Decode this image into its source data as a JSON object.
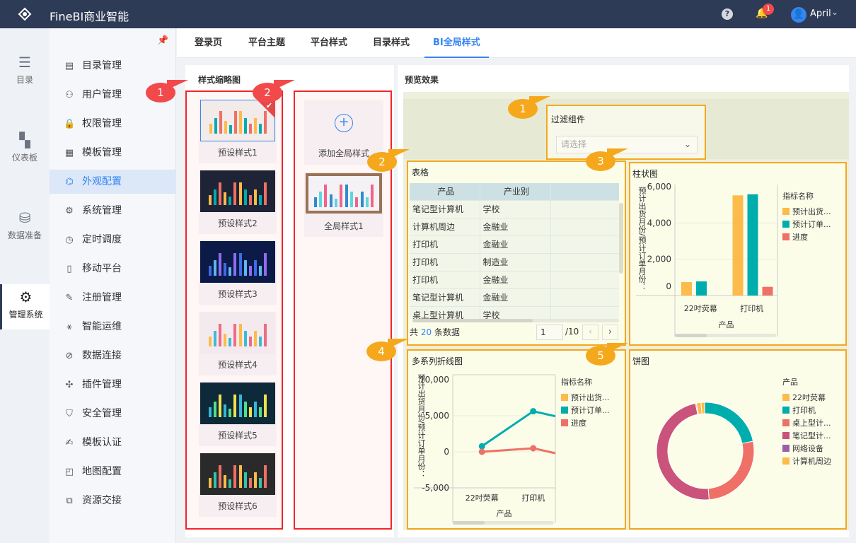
{
  "header": {
    "app_title": "FineBI商业智能",
    "help_icon": "question-icon",
    "notification_count": "1",
    "user_name": "April"
  },
  "rail": [
    {
      "label": "目录",
      "icon": "list-icon"
    },
    {
      "label": "仪表板",
      "icon": "dashboard-icon"
    },
    {
      "label": "数据准备",
      "icon": "database-icon"
    },
    {
      "label": "管理系统",
      "icon": "gear-icon",
      "active": true
    }
  ],
  "sidebar": {
    "items": [
      {
        "label": "目录管理",
        "icon": "▤"
      },
      {
        "label": "用户管理",
        "icon": "⚇"
      },
      {
        "label": "权限管理",
        "icon": "🔒"
      },
      {
        "label": "模板管理",
        "icon": "▦"
      },
      {
        "label": "外观配置",
        "icon": "⌬",
        "active": true
      },
      {
        "label": "系统管理",
        "icon": "⚙"
      },
      {
        "label": "定时调度",
        "icon": "◷"
      },
      {
        "label": "移动平台",
        "icon": "▯"
      },
      {
        "label": "注册管理",
        "icon": "✎"
      },
      {
        "label": "智能运维",
        "icon": "⚹"
      },
      {
        "label": "数据连接",
        "icon": "⊘"
      },
      {
        "label": "插件管理",
        "icon": "✣"
      },
      {
        "label": "安全管理",
        "icon": "⛉"
      },
      {
        "label": "模板认证",
        "icon": "✍"
      },
      {
        "label": "地图配置",
        "icon": "◰"
      },
      {
        "label": "资源交接",
        "icon": "⧉"
      }
    ]
  },
  "tabs": [
    {
      "label": "登录页"
    },
    {
      "label": "平台主题"
    },
    {
      "label": "平台样式"
    },
    {
      "label": "目录样式"
    },
    {
      "label": "BI全局样式",
      "active": true
    }
  ],
  "thumbnails": {
    "title": "样式缩略图",
    "presets": [
      {
        "label": "预设样式1",
        "bg": "#f3eaea",
        "selected": true
      },
      {
        "label": "预设样式2",
        "bg": "#1f2336"
      },
      {
        "label": "预设样式3",
        "bg": "#0c1a48"
      },
      {
        "label": "预设样式4",
        "bg": "#f4eaee"
      },
      {
        "label": "预设样式5",
        "bg": "#0e2a3a"
      },
      {
        "label": "预设样式6",
        "bg": "#2a2a2a"
      }
    ],
    "add_label": "添加全局样式",
    "custom": [
      {
        "label": "全局样式1"
      }
    ]
  },
  "preview": {
    "title": "预览效果",
    "filter": {
      "title": "过滤组件",
      "placeholder": "请选择"
    },
    "table": {
      "title": "表格",
      "columns": [
        "产品",
        "产业别",
        ""
      ],
      "rows": [
        [
          "笔记型计算机",
          "学校"
        ],
        [
          "计算机周边",
          "金融业"
        ],
        [
          "打印机",
          "金融业"
        ],
        [
          "打印机",
          "制造业"
        ],
        [
          "打印机",
          "金融业"
        ],
        [
          "笔记型计算机",
          "金融业"
        ],
        [
          "桌上型计算机",
          "学校"
        ]
      ],
      "total_prefix": "共",
      "total": "20",
      "total_suffix": "条数据",
      "page": "1",
      "pages": "/10"
    },
    "callouts_left": [
      "1",
      "2"
    ],
    "callouts_right": [
      "1",
      "2",
      "3",
      "4",
      "5"
    ]
  },
  "colors": {
    "accent": "#3685f2",
    "yellow": "#fcbb4a",
    "teal": "#00adad",
    "salmon": "#ef7066",
    "callout_red": "#f24a4a",
    "callout_orange": "#f5a81c"
  },
  "chart_data": [
    {
      "type": "bar",
      "title": "柱状图",
      "xlabel": "产品",
      "ylabel": "预计出货月份/预计订单月份：",
      "categories": [
        "22吋荧幕",
        "打印机"
      ],
      "ylim": [
        0,
        6000
      ],
      "yticks": [
        "0",
        "2,000",
        "4,000",
        "6,000"
      ],
      "legend_title": "指标名称",
      "legend": "right",
      "series": [
        {
          "name": "预计出货...",
          "color": "#fcbb4a",
          "values": [
            740,
            5520
          ]
        },
        {
          "name": "预计订单...",
          "color": "#00adad",
          "values": [
            780,
            5580
          ]
        },
        {
          "name": "进度",
          "color": "#ef7066",
          "values": [
            0,
            480
          ]
        }
      ]
    },
    {
      "type": "line",
      "title": "多系列折线图",
      "xlabel": "产品",
      "ylabel": "预计出货月份/预计订单月份：",
      "categories": [
        "22吋荧幕",
        "打印机"
      ],
      "ylim": [
        -5000,
        10000
      ],
      "yticks": [
        "-5,000",
        "0",
        "5,000",
        "10,000"
      ],
      "legend_title": "指标名称",
      "legend": "right",
      "series": [
        {
          "name": "预计出货...",
          "color": "#fcbb4a",
          "values": [
            null,
            null
          ]
        },
        {
          "name": "预计订单...",
          "color": "#00adad",
          "values": [
            770,
            5620
          ]
        },
        {
          "name": "进度",
          "color": "#ef7066",
          "values": [
            0,
            490
          ]
        }
      ]
    },
    {
      "type": "pie",
      "title": "饼图",
      "legend_title": "产品",
      "legend": "right",
      "donut": true,
      "slices": [
        {
          "name": "22吋荧幕",
          "color": "#fcbb4a",
          "value": 1.2
        },
        {
          "name": "打印机",
          "color": "#00adad",
          "value": 22
        },
        {
          "name": "桌上型计...",
          "color": "#ef7066",
          "value": 27
        },
        {
          "name": "笔记型计...",
          "color": "#c9537a",
          "value": 48
        },
        {
          "name": "网络设备",
          "color": "#9b5fa8",
          "value": 0.3
        },
        {
          "name": "计算机周边",
          "color": "#fcbb4a",
          "value": 1.5
        }
      ]
    }
  ]
}
